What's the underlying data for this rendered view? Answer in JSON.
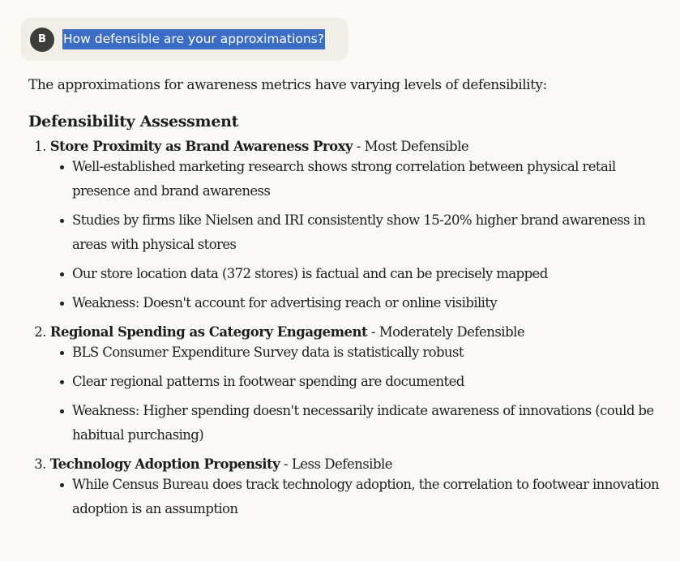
{
  "user_message": {
    "avatar_initial": "B",
    "text": "How defensible are your approximations?"
  },
  "response": {
    "intro": "The approximations for awareness metrics have varying levels of defensibility:",
    "heading": "Defensibility Assessment",
    "sections": [
      {
        "number": "1.",
        "title": "Store Proximity as Brand Awareness Proxy",
        "rating": " - Most Defensible",
        "bullets": [
          "Well-established marketing research shows strong correlation between physical retail presence and brand awareness",
          "Studies by firms like Nielsen and IRI consistently show 15-20% higher brand awareness in areas with physical stores",
          "Our store location data (372 stores) is factual and can be precisely mapped",
          "Weakness: Doesn't account for advertising reach or online visibility"
        ]
      },
      {
        "number": "2.",
        "title": "Regional Spending as Category Engagement",
        "rating": " - Moderately Defensible",
        "bullets": [
          "BLS Consumer Expenditure Survey data is statistically robust",
          "Clear regional patterns in footwear spending are documented",
          "Weakness: Higher spending doesn't necessarily indicate awareness of innovations (could be habitual purchasing)"
        ]
      },
      {
        "number": "3.",
        "title": "Technology Adoption Propensity",
        "rating": " - Less Defensible",
        "bullets": [
          "While Census Bureau does track technology adoption, the correlation to footwear innovation adoption is an assumption"
        ]
      }
    ]
  },
  "colors": {
    "background": "#faf9f5",
    "bubble": "#f0eee6",
    "avatar": "#3d3d3a",
    "selection": "#3b6dc7",
    "text": "#1f1e1d"
  }
}
